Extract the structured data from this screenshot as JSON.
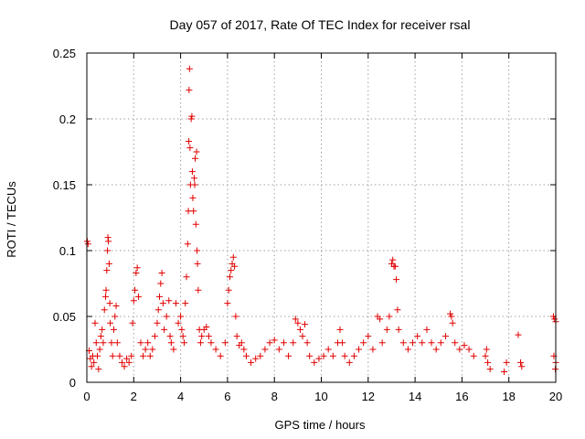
{
  "chart_data": {
    "type": "scatter",
    "title": "Day 057 of 2017, Rate Of TEC Index for receiver rsal",
    "xlabel": "GPS time / hours",
    "ylabel": "ROTI / TECUs",
    "xlim": [
      0,
      20
    ],
    "ylim": [
      0,
      0.25
    ],
    "xticks": [
      "0",
      "2",
      "4",
      "6",
      "8",
      "10",
      "12",
      "14",
      "16",
      "18",
      "20"
    ],
    "yticks": [
      "0",
      "0.05",
      "0.1",
      "0.15",
      "0.2",
      "0.25"
    ],
    "grid": true,
    "marker": "plus",
    "color": "#e00000",
    "series": [
      {
        "name": "ROTI",
        "points": [
          [
            0.02,
            0.107
          ],
          [
            0.05,
            0.105
          ],
          [
            0.1,
            0.024
          ],
          [
            0.15,
            0.018
          ],
          [
            0.2,
            0.012
          ],
          [
            0.25,
            0.02
          ],
          [
            0.3,
            0.015
          ],
          [
            0.35,
            0.045
          ],
          [
            0.4,
            0.03
          ],
          [
            0.45,
            0.02
          ],
          [
            0.5,
            0.01
          ],
          [
            0.55,
            0.025
          ],
          [
            0.6,
            0.035
          ],
          [
            0.65,
            0.04
          ],
          [
            0.7,
            0.03
          ],
          [
            0.75,
            0.055
          ],
          [
            0.8,
            0.065
          ],
          [
            0.82,
            0.07
          ],
          [
            0.85,
            0.085
          ],
          [
            0.88,
            0.1
          ],
          [
            0.9,
            0.11
          ],
          [
            0.92,
            0.107
          ],
          [
            0.95,
            0.09
          ],
          [
            0.98,
            0.06
          ],
          [
            1.0,
            0.045
          ],
          [
            1.05,
            0.03
          ],
          [
            1.1,
            0.02
          ],
          [
            1.15,
            0.04
          ],
          [
            1.2,
            0.05
          ],
          [
            1.25,
            0.058
          ],
          [
            1.3,
            0.03
          ],
          [
            1.4,
            0.02
          ],
          [
            1.5,
            0.015
          ],
          [
            1.6,
            0.012
          ],
          [
            1.7,
            0.018
          ],
          [
            1.8,
            0.015
          ],
          [
            1.9,
            0.02
          ],
          [
            1.95,
            0.045
          ],
          [
            2.0,
            0.062
          ],
          [
            2.05,
            0.07
          ],
          [
            2.1,
            0.083
          ],
          [
            2.15,
            0.087
          ],
          [
            2.2,
            0.065
          ],
          [
            2.3,
            0.03
          ],
          [
            2.4,
            0.02
          ],
          [
            2.5,
            0.025
          ],
          [
            2.6,
            0.03
          ],
          [
            2.7,
            0.02
          ],
          [
            2.8,
            0.025
          ],
          [
            2.9,
            0.035
          ],
          [
            3.0,
            0.045
          ],
          [
            3.05,
            0.055
          ],
          [
            3.1,
            0.065
          ],
          [
            3.15,
            0.075
          ],
          [
            3.2,
            0.083
          ],
          [
            3.25,
            0.06
          ],
          [
            3.3,
            0.04
          ],
          [
            3.4,
            0.05
          ],
          [
            3.5,
            0.062
          ],
          [
            3.55,
            0.035
          ],
          [
            3.6,
            0.03
          ],
          [
            3.7,
            0.025
          ],
          [
            3.8,
            0.06
          ],
          [
            3.9,
            0.045
          ],
          [
            4.0,
            0.05
          ],
          [
            4.05,
            0.04
          ],
          [
            4.1,
            0.035
          ],
          [
            4.15,
            0.03
          ],
          [
            4.2,
            0.06
          ],
          [
            4.25,
            0.08
          ],
          [
            4.3,
            0.105
          ],
          [
            4.33,
            0.13
          ],
          [
            4.35,
            0.183
          ],
          [
            4.36,
            0.222
          ],
          [
            4.38,
            0.238
          ],
          [
            4.4,
            0.178
          ],
          [
            4.42,
            0.15
          ],
          [
            4.45,
            0.2
          ],
          [
            4.48,
            0.202
          ],
          [
            4.5,
            0.16
          ],
          [
            4.52,
            0.14
          ],
          [
            4.55,
            0.13
          ],
          [
            4.58,
            0.155
          ],
          [
            4.6,
            0.15
          ],
          [
            4.62,
            0.17
          ],
          [
            4.65,
            0.12
          ],
          [
            4.68,
            0.175
          ],
          [
            4.7,
            0.1
          ],
          [
            4.72,
            0.09
          ],
          [
            4.75,
            0.07
          ],
          [
            4.8,
            0.04
          ],
          [
            4.85,
            0.03
          ],
          [
            4.9,
            0.035
          ],
          [
            5.0,
            0.04
          ],
          [
            5.1,
            0.042
          ],
          [
            5.2,
            0.035
          ],
          [
            5.3,
            0.03
          ],
          [
            5.5,
            0.025
          ],
          [
            5.7,
            0.02
          ],
          [
            5.9,
            0.03
          ],
          [
            6.0,
            0.06
          ],
          [
            6.05,
            0.07
          ],
          [
            6.1,
            0.08
          ],
          [
            6.15,
            0.085
          ],
          [
            6.2,
            0.09
          ],
          [
            6.25,
            0.095
          ],
          [
            6.3,
            0.088
          ],
          [
            6.35,
            0.05
          ],
          [
            6.4,
            0.035
          ],
          [
            6.5,
            0.028
          ],
          [
            6.6,
            0.03
          ],
          [
            6.7,
            0.025
          ],
          [
            6.8,
            0.02
          ],
          [
            7.0,
            0.015
          ],
          [
            7.2,
            0.018
          ],
          [
            7.4,
            0.02
          ],
          [
            7.6,
            0.025
          ],
          [
            7.8,
            0.03
          ],
          [
            8.0,
            0.032
          ],
          [
            8.2,
            0.025
          ],
          [
            8.4,
            0.03
          ],
          [
            8.6,
            0.02
          ],
          [
            8.8,
            0.03
          ],
          [
            8.9,
            0.048
          ],
          [
            9.0,
            0.045
          ],
          [
            9.1,
            0.04
          ],
          [
            9.2,
            0.035
          ],
          [
            9.3,
            0.044
          ],
          [
            9.4,
            0.03
          ],
          [
            9.5,
            0.02
          ],
          [
            9.7,
            0.015
          ],
          [
            9.9,
            0.018
          ],
          [
            10.1,
            0.02
          ],
          [
            10.3,
            0.025
          ],
          [
            10.5,
            0.02
          ],
          [
            10.7,
            0.03
          ],
          [
            10.8,
            0.04
          ],
          [
            10.9,
            0.03
          ],
          [
            11.0,
            0.02
          ],
          [
            11.2,
            0.015
          ],
          [
            11.4,
            0.02
          ],
          [
            11.6,
            0.025
          ],
          [
            11.8,
            0.03
          ],
          [
            12.0,
            0.035
          ],
          [
            12.2,
            0.025
          ],
          [
            12.4,
            0.05
          ],
          [
            12.5,
            0.048
          ],
          [
            12.6,
            0.03
          ],
          [
            12.8,
            0.04
          ],
          [
            12.9,
            0.05
          ],
          [
            13.0,
            0.09
          ],
          [
            13.05,
            0.093
          ],
          [
            13.1,
            0.088
          ],
          [
            13.15,
            0.088
          ],
          [
            13.2,
            0.078
          ],
          [
            13.25,
            0.055
          ],
          [
            13.3,
            0.04
          ],
          [
            13.5,
            0.03
          ],
          [
            13.7,
            0.025
          ],
          [
            13.9,
            0.03
          ],
          [
            14.1,
            0.035
          ],
          [
            14.3,
            0.03
          ],
          [
            14.5,
            0.04
          ],
          [
            14.7,
            0.03
          ],
          [
            14.9,
            0.025
          ],
          [
            15.1,
            0.03
          ],
          [
            15.3,
            0.035
          ],
          [
            15.5,
            0.052
          ],
          [
            15.55,
            0.05
          ],
          [
            15.6,
            0.045
          ],
          [
            15.7,
            0.03
          ],
          [
            15.9,
            0.025
          ],
          [
            16.1,
            0.028
          ],
          [
            16.3,
            0.025
          ],
          [
            16.5,
            0.02
          ],
          [
            17.0,
            0.02
          ],
          [
            17.05,
            0.025
          ],
          [
            17.1,
            0.015
          ],
          [
            17.2,
            0.01
          ],
          [
            17.8,
            0.008
          ],
          [
            17.9,
            0.015
          ],
          [
            18.4,
            0.036
          ],
          [
            18.5,
            0.015
          ],
          [
            18.55,
            0.012
          ],
          [
            19.9,
            0.05
          ],
          [
            19.95,
            0.048
          ],
          [
            20.0,
            0.046
          ],
          [
            19.92,
            0.02
          ],
          [
            19.98,
            0.01
          ],
          [
            20.0,
            0.015
          ]
        ]
      }
    ]
  }
}
